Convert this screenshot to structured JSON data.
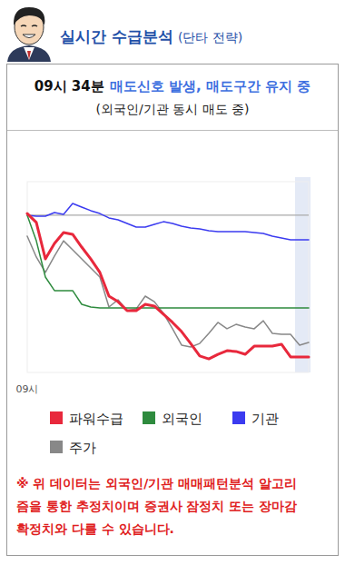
{
  "header": {
    "title": "실시간 수급분석",
    "subtitle": "(단타 전략)"
  },
  "status": {
    "time": "09시 34분",
    "signal": "매도신호 발생, 매도구간 유지 중",
    "detail": "(외국인/기관 동시 매도 중)"
  },
  "chart_data": {
    "type": "line",
    "categories": [
      "09시",
      null,
      null,
      null,
      null,
      null,
      null,
      null,
      null,
      null,
      null,
      null,
      null,
      null,
      null,
      null,
      null,
      null,
      null,
      null,
      null,
      null,
      null,
      null,
      null,
      null,
      null,
      null,
      null,
      null,
      null,
      null
    ],
    "series": [
      {
        "name": "파워수급",
        "color": "#e8283c",
        "values": [
          83.3,
          78.6,
          59.5,
          67.6,
          73.3,
          72.4,
          65.7,
          59.5,
          52.4,
          40,
          37.1,
          32.4,
          32.4,
          35.7,
          34.8,
          30.5,
          26.2,
          21.4,
          15.2,
          8.6,
          7.1,
          9.5,
          11.4,
          11,
          9.5,
          13.8,
          13.8,
          13.8,
          14.8,
          8.1,
          8.1,
          8.1
        ]
      },
      {
        "name": "외국인",
        "color": "#2e8b3e",
        "values": [
          82.4,
          69,
          50,
          42.9,
          42.9,
          42.9,
          35.7,
          34.3,
          33.8,
          33.8,
          33.8,
          33.8,
          33.8,
          33.8,
          33.8,
          33.8,
          33.8,
          33.8,
          33.8,
          33.8,
          33.8,
          33.8,
          33.8,
          33.8,
          33.8,
          33.8,
          33.8,
          33.8,
          33.8,
          33.8,
          33.8,
          33.8
        ]
      },
      {
        "name": "기관",
        "color": "#3b3bf0",
        "values": [
          82.4,
          81.9,
          81.9,
          83.8,
          82.9,
          88.6,
          86.7,
          84.8,
          83.3,
          81,
          80,
          78.1,
          76.2,
          76.2,
          77.6,
          79,
          78.1,
          76.7,
          75.7,
          75.2,
          74.3,
          73.8,
          73.8,
          73.8,
          73.8,
          73.3,
          72.9,
          71.4,
          70.5,
          69.5,
          69.5,
          69.5
        ]
      },
      {
        "name": "주가",
        "color": "#888888",
        "values": [
          71.4,
          60.5,
          52.4,
          61,
          69,
          64.3,
          59.5,
          54.8,
          50,
          34.3,
          38.1,
          32.4,
          33.3,
          40,
          37.1,
          31,
          22.9,
          14.3,
          13.3,
          15.2,
          20.5,
          26.2,
          22.9,
          25.2,
          23.8,
          22.9,
          27.1,
          20.5,
          20,
          20,
          14.3,
          15.7
        ]
      }
    ],
    "ylim": [
      0,
      100
    ],
    "yticks": [
      82.4
    ],
    "grid": true,
    "tick_labels": "x",
    "legend": "bottom"
  },
  "notice": [
    "※ 위 데이터는 외국인/기관 매매패턴분석 알고리",
    "즘을 통한 추정치이며 증권사 잠정치 또는 장마감",
    "확정치와 다를 수 있습니다."
  ]
}
